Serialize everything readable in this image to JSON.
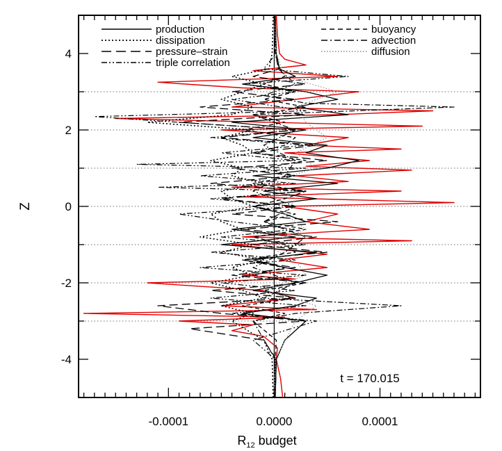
{
  "chart_data": {
    "type": "line",
    "orientation": "vertical-profiles",
    "xlabel": "R",
    "xlabel_sub": "12",
    "xlabel_suffix": " budget",
    "ylabel": "Z",
    "xlim": [
      -0.000185,
      0.000195
    ],
    "ylim": [
      -5,
      5
    ],
    "x_ticks": [
      -0.0001,
      0.0,
      0.0001
    ],
    "x_tick_labels": [
      "-0.0001",
      "0.0000",
      "0.0001"
    ],
    "y_ticks": [
      -4,
      -2,
      0,
      2,
      4
    ],
    "y_tick_labels": [
      "-4",
      "-2",
      "0",
      "2",
      "4"
    ],
    "reference_lines_z": [
      -3,
      -2,
      -1,
      0,
      1,
      2,
      3
    ],
    "vertical_reference_x": 0,
    "annotation": "t = 170.015",
    "legend_placement": "top",
    "legend": [
      {
        "name": "production",
        "style": "solid",
        "column": "left"
      },
      {
        "name": "dissipation",
        "style": "dotted",
        "column": "left"
      },
      {
        "name": "pressure–strain",
        "style": "long-dash",
        "column": "left"
      },
      {
        "name": "triple correlation",
        "style": "dash-dot-dot",
        "column": "left"
      },
      {
        "name": "buoyancy",
        "style": "dashed",
        "column": "right"
      },
      {
        "name": "advection",
        "style": "dash-dot",
        "column": "right"
      },
      {
        "name": "diffusion",
        "style": "gray-dotted",
        "column": "right"
      }
    ],
    "series": [
      {
        "key": "red",
        "color": "#e00000",
        "z": [
          -5.0,
          -4.5,
          -4.0,
          -3.7,
          -3.4,
          -3.25,
          -3.1,
          -3.0,
          -2.9,
          -2.8,
          -2.7,
          -2.6,
          -2.4,
          -2.2,
          -2.0,
          -1.9,
          -1.8,
          -1.6,
          -1.4,
          -1.25,
          -1.0,
          -0.9,
          -0.8,
          -0.6,
          -0.4,
          -0.2,
          0.0,
          0.1,
          0.25,
          0.4,
          0.5,
          0.65,
          0.8,
          0.95,
          1.05,
          1.2,
          1.4,
          1.5,
          1.6,
          1.8,
          2.0,
          2.1,
          2.3,
          2.4,
          2.5,
          2.6,
          2.8,
          3.0,
          3.1,
          3.25,
          3.4,
          3.55,
          3.7,
          3.85,
          4.0,
          4.5,
          5.0
        ],
        "x": [
          8e-06,
          6e-06,
          2e-06,
          3e-06,
          -1e-05,
          -4e-05,
          -2e-05,
          -9e-05,
          1e-05,
          -0.00018,
          4e-05,
          -5e-05,
          2e-05,
          -1e-05,
          -0.00012,
          2e-05,
          -3e-05,
          5e-05,
          5e-06,
          5e-05,
          -4e-05,
          0.00013,
          -3e-05,
          9e-05,
          3e-05,
          6e-05,
          1e-05,
          0.00017,
          -3e-05,
          0.00012,
          -4e-05,
          7e-05,
          2e-05,
          0.00013,
          3e-05,
          9e-05,
          1e-05,
          0.00012,
          3e-05,
          7e-05,
          -5e-05,
          0.00014,
          -0.00015,
          6e-05,
          0.00015,
          -4e-05,
          2e-05,
          8e-05,
          -3e-05,
          -0.00011,
          6e-05,
          -2e-05,
          3e-05,
          1e-05,
          5e-06,
          3e-06,
          2e-06
        ]
      },
      {
        "key": "production",
        "color": "#000000",
        "dash": "",
        "width": 1.3,
        "z": [
          -5.0,
          -4.0,
          -3.5,
          -3.0,
          -2.8,
          -2.6,
          -2.4,
          -2.2,
          -2.0,
          -1.8,
          -1.6,
          -1.4,
          -1.2,
          -1.0,
          -0.8,
          -0.6,
          -0.4,
          -0.2,
          0.0,
          0.2,
          0.4,
          0.6,
          0.8,
          1.0,
          1.2,
          1.4,
          1.6,
          1.8,
          2.0,
          2.2,
          2.4,
          2.6,
          2.8,
          3.0,
          3.2,
          3.4,
          3.6,
          4.0,
          5.0
        ],
        "x": [
          1e-06,
          2e-06,
          1e-05,
          3e-05,
          -3e-05,
          2e-05,
          4e-05,
          -2e-05,
          2e-05,
          5e-05,
          1e-05,
          -2e-05,
          4e-05,
          -5e-05,
          2e-05,
          -4e-05,
          3e-05,
          1e-05,
          -2e-05,
          4e-05,
          -1e-05,
          6e-05,
          -2e-05,
          5e-05,
          8e-05,
          3e-05,
          5e-05,
          -2e-05,
          3e-05,
          -4e-05,
          7e-05,
          2e-05,
          6e-05,
          3e-05,
          -3e-05,
          2e-05,
          5e-06,
          2e-06,
          1e-06
        ]
      },
      {
        "key": "dissipation",
        "color": "#000000",
        "dash": "2 3",
        "width": 1.6,
        "z": [
          -5.0,
          -4.0,
          -3.5,
          -3.0,
          -2.8,
          -2.6,
          -2.4,
          -2.2,
          -2.0,
          -1.8,
          -1.6,
          -1.4,
          -1.2,
          -1.0,
          -0.8,
          -0.6,
          -0.4,
          -0.2,
          0.0,
          0.2,
          0.4,
          0.6,
          0.8,
          1.0,
          1.2,
          1.4,
          1.6,
          1.8,
          2.0,
          2.2,
          2.4,
          2.6,
          2.8,
          3.0,
          3.2,
          3.4,
          3.6,
          4.0,
          5.0
        ],
        "x": [
          -1e-06,
          -2e-06,
          -1e-05,
          -4e-05,
          -2e-05,
          -5e-05,
          -1e-05,
          -3e-05,
          -6e-05,
          -2e-05,
          -4e-05,
          -1e-05,
          -5e-05,
          -2e-05,
          -7e-05,
          -3e-05,
          -5e-05,
          -6e-05,
          -2e-05,
          -4e-05,
          -5e-05,
          -1e-05,
          -4e-05,
          -3e-05,
          -6e-05,
          -2e-05,
          -3e-05,
          -5e-05,
          -2e-05,
          -0.00012,
          -4e-05,
          -2e-05,
          -5e-05,
          -3e-05,
          -1e-05,
          -4e-05,
          -5e-06,
          -2e-06,
          -1e-06
        ]
      },
      {
        "key": "pressure-strain",
        "color": "#000000",
        "dash": "12 6",
        "width": 1.3,
        "z": [
          -5.0,
          -4.0,
          -3.5,
          -3.2,
          -3.0,
          -2.8,
          -2.6,
          -2.4,
          -2.2,
          -2.0,
          -1.8,
          -1.6,
          -1.4,
          -1.2,
          -1.0,
          -0.8,
          -0.6,
          -0.4,
          -0.2,
          0.0,
          0.2,
          0.4,
          0.6,
          0.8,
          1.0,
          1.2,
          1.4,
          1.6,
          1.8,
          2.0,
          2.2,
          2.4,
          2.6,
          2.8,
          3.0,
          3.2,
          3.4,
          3.6,
          4.0,
          5.0
        ],
        "x": [
          1e-06,
          2e-06,
          -1e-05,
          -8e-05,
          3e-05,
          -5e-05,
          -0.00011,
          2e-05,
          -6e-05,
          3e-05,
          -4e-05,
          2e-05,
          -3e-05,
          5e-05,
          -2e-05,
          4e-05,
          -3e-05,
          6e-05,
          -4e-05,
          2e-05,
          -5e-05,
          3e-05,
          -6e-05,
          2e-05,
          -4e-05,
          5e-05,
          -2e-05,
          4e-05,
          -5e-05,
          2e-05,
          -9e-05,
          3e-05,
          -7e-05,
          2e-05,
          -4e-05,
          3e-05,
          -2e-05,
          5e-06,
          2e-06,
          1e-06
        ]
      },
      {
        "key": "buoyancy",
        "color": "#000000",
        "dash": "6 4",
        "width": 1.3,
        "z": [
          -5.0,
          -4.0,
          -3.5,
          -3.0,
          -2.8,
          -2.6,
          -2.4,
          -2.2,
          -2.0,
          -1.8,
          -1.6,
          -1.4,
          -1.2,
          -1.0,
          -0.8,
          -0.6,
          -0.4,
          -0.2,
          0.0,
          0.2,
          0.4,
          0.6,
          0.8,
          1.0,
          1.2,
          1.4,
          1.6,
          1.8,
          2.0,
          2.2,
          2.4,
          2.6,
          2.8,
          3.0,
          3.2,
          3.4,
          3.6,
          4.0,
          5.0
        ],
        "x": [
          0.0,
          1e-06,
          2e-06,
          -2e-05,
          1e-05,
          -3e-05,
          2e-05,
          -1e-05,
          3e-05,
          -2e-05,
          1e-05,
          -3e-05,
          2e-05,
          1e-05,
          -2e-05,
          3e-05,
          -1e-05,
          2e-05,
          -2e-05,
          1e-05,
          3e-05,
          -2e-05,
          2e-05,
          -1e-05,
          3e-05,
          -2e-05,
          1e-05,
          2e-05,
          -3e-05,
          1e-05,
          -2e-05,
          3e-05,
          -1e-05,
          2e-05,
          -1e-05,
          1e-05,
          5e-06,
          1e-06,
          0.0
        ]
      },
      {
        "key": "advection",
        "color": "#000000",
        "dash": "8 3 2 3",
        "width": 1.2,
        "z": [
          -5.0,
          -4.0,
          -3.0,
          -2.8,
          -2.6,
          -2.4,
          -2.0,
          -1.6,
          -1.2,
          -0.8,
          -0.4,
          0.0,
          0.4,
          0.8,
          1.2,
          1.6,
          2.0,
          2.4,
          2.6,
          2.7,
          2.9,
          3.2,
          3.6,
          4.0,
          5.0
        ],
        "x": [
          0.0,
          1e-06,
          -2e-05,
          2e-05,
          0.00012,
          -1e-05,
          2e-05,
          -2e-05,
          1e-05,
          3e-05,
          -1e-05,
          2e-05,
          -2e-05,
          1e-05,
          2e-05,
          -1e-05,
          2e-05,
          -2e-05,
          0.00017,
          3e-05,
          -1e-05,
          2e-05,
          4e-06,
          1e-06,
          0.0
        ]
      },
      {
        "key": "triple-correlation",
        "color": "#000000",
        "dash": "8 3 2 3 2 3",
        "width": 1.2,
        "z": [
          -5.0,
          -4.0,
          -3.5,
          -3.0,
          -2.8,
          -2.6,
          -2.4,
          -2.2,
          -2.0,
          -1.8,
          -1.6,
          -1.4,
          -1.2,
          -1.0,
          -0.8,
          -0.6,
          -0.4,
          -0.2,
          0.0,
          0.2,
          0.4,
          0.5,
          0.6,
          0.8,
          1.0,
          1.1,
          1.2,
          1.4,
          1.6,
          1.8,
          2.0,
          2.2,
          2.35,
          2.5,
          2.8,
          3.0,
          3.2,
          3.4,
          3.6,
          4.0,
          5.0
        ],
        "x": [
          0.0,
          1e-06,
          -2e-05,
          4e-05,
          -4e-05,
          3e-05,
          -6e-05,
          2e-05,
          -5e-05,
          3e-05,
          -7e-05,
          2e-05,
          -6e-05,
          3e-05,
          -5e-05,
          2e-05,
          -4e-05,
          -9e-05,
          2e-05,
          -6e-05,
          3e-05,
          -0.00011,
          2e-05,
          -7e-05,
          3e-05,
          -0.00013,
          2e-05,
          -5e-05,
          3e-05,
          -6e-05,
          2e-05,
          -9e-05,
          -0.00017,
          3e-05,
          -4e-05,
          2e-05,
          -3e-05,
          7e-05,
          -1e-05,
          2e-06,
          0.0
        ]
      },
      {
        "key": "diffusion",
        "color": "#9a9a9a",
        "dash": "1.5 2.5",
        "width": 1.3,
        "z": [
          -5.0,
          -4.0,
          -3.0,
          -2.6,
          -2.2,
          -1.8,
          -1.4,
          -1.0,
          -0.6,
          -0.2,
          0.2,
          0.6,
          1.0,
          1.4,
          1.8,
          2.2,
          2.6,
          3.0,
          3.4,
          4.0,
          5.0
        ],
        "x": [
          0.0,
          1e-06,
          2e-05,
          4e-05,
          -1e-05,
          3e-05,
          2e-05,
          -1e-05,
          3e-05,
          1e-05,
          2e-05,
          -1e-05,
          4e-05,
          2e-05,
          5e-05,
          3e-05,
          2e-05,
          6e-05,
          1e-05,
          2e-06,
          0.0
        ]
      }
    ]
  }
}
